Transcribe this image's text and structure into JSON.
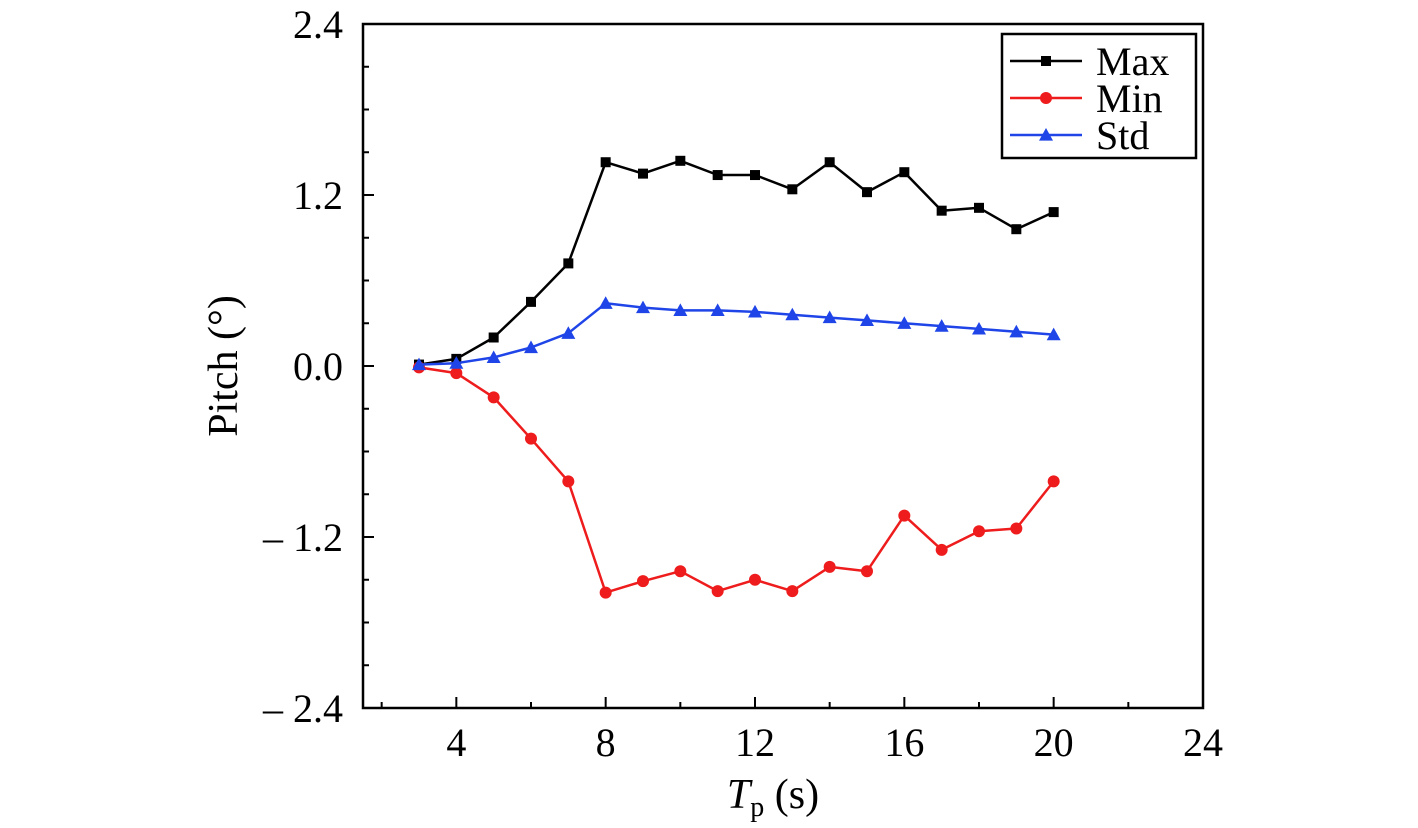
{
  "chart_data": {
    "type": "line",
    "xlabel": {
      "main": "T",
      "sub": "p",
      "unit": " (s)"
    },
    "ylabel": "Pitch (°)",
    "xlim": [
      1.5,
      24
    ],
    "ylim": [
      -2.4,
      2.4
    ],
    "xticks": [
      4,
      8,
      12,
      16,
      20,
      24
    ],
    "xtick_labels": [
      "4",
      "8",
      "12",
      "16",
      "20",
      "24"
    ],
    "xminor_step": 2,
    "yticks": [
      -2.4,
      -1.2,
      0,
      1.2,
      2.4
    ],
    "ytick_labels": [
      "– 2.4",
      "– 1.2",
      "0.0",
      "1.2",
      "2.4"
    ],
    "yminor_step": 0.3,
    "grid": false,
    "legend_position": "top-right",
    "x": [
      3,
      4,
      5,
      6,
      7,
      8,
      9,
      10,
      11,
      12,
      13,
      14,
      15,
      16,
      17,
      18,
      19,
      20
    ],
    "series": [
      {
        "name": "Max",
        "color": "#000000",
        "marker": "square",
        "values": [
          0.01,
          0.05,
          0.2,
          0.45,
          0.72,
          1.43,
          1.35,
          1.44,
          1.34,
          1.34,
          1.24,
          1.43,
          1.22,
          1.36,
          1.09,
          1.11,
          0.96,
          1.08
        ]
      },
      {
        "name": "Min",
        "color": "#ee1c1c",
        "marker": "circle",
        "values": [
          -0.01,
          -0.05,
          -0.22,
          -0.51,
          -0.81,
          -1.59,
          -1.51,
          -1.44,
          -1.58,
          -1.5,
          -1.58,
          -1.41,
          -1.44,
          -1.05,
          -1.29,
          -1.16,
          -1.14,
          -0.81
        ]
      },
      {
        "name": "Std",
        "color": "#1f45e8",
        "marker": "triangle",
        "values": [
          0.01,
          0.02,
          0.06,
          0.13,
          0.23,
          0.44,
          0.41,
          0.39,
          0.39,
          0.38,
          0.36,
          0.34,
          0.32,
          0.3,
          0.28,
          0.26,
          0.24,
          0.22
        ]
      }
    ]
  }
}
